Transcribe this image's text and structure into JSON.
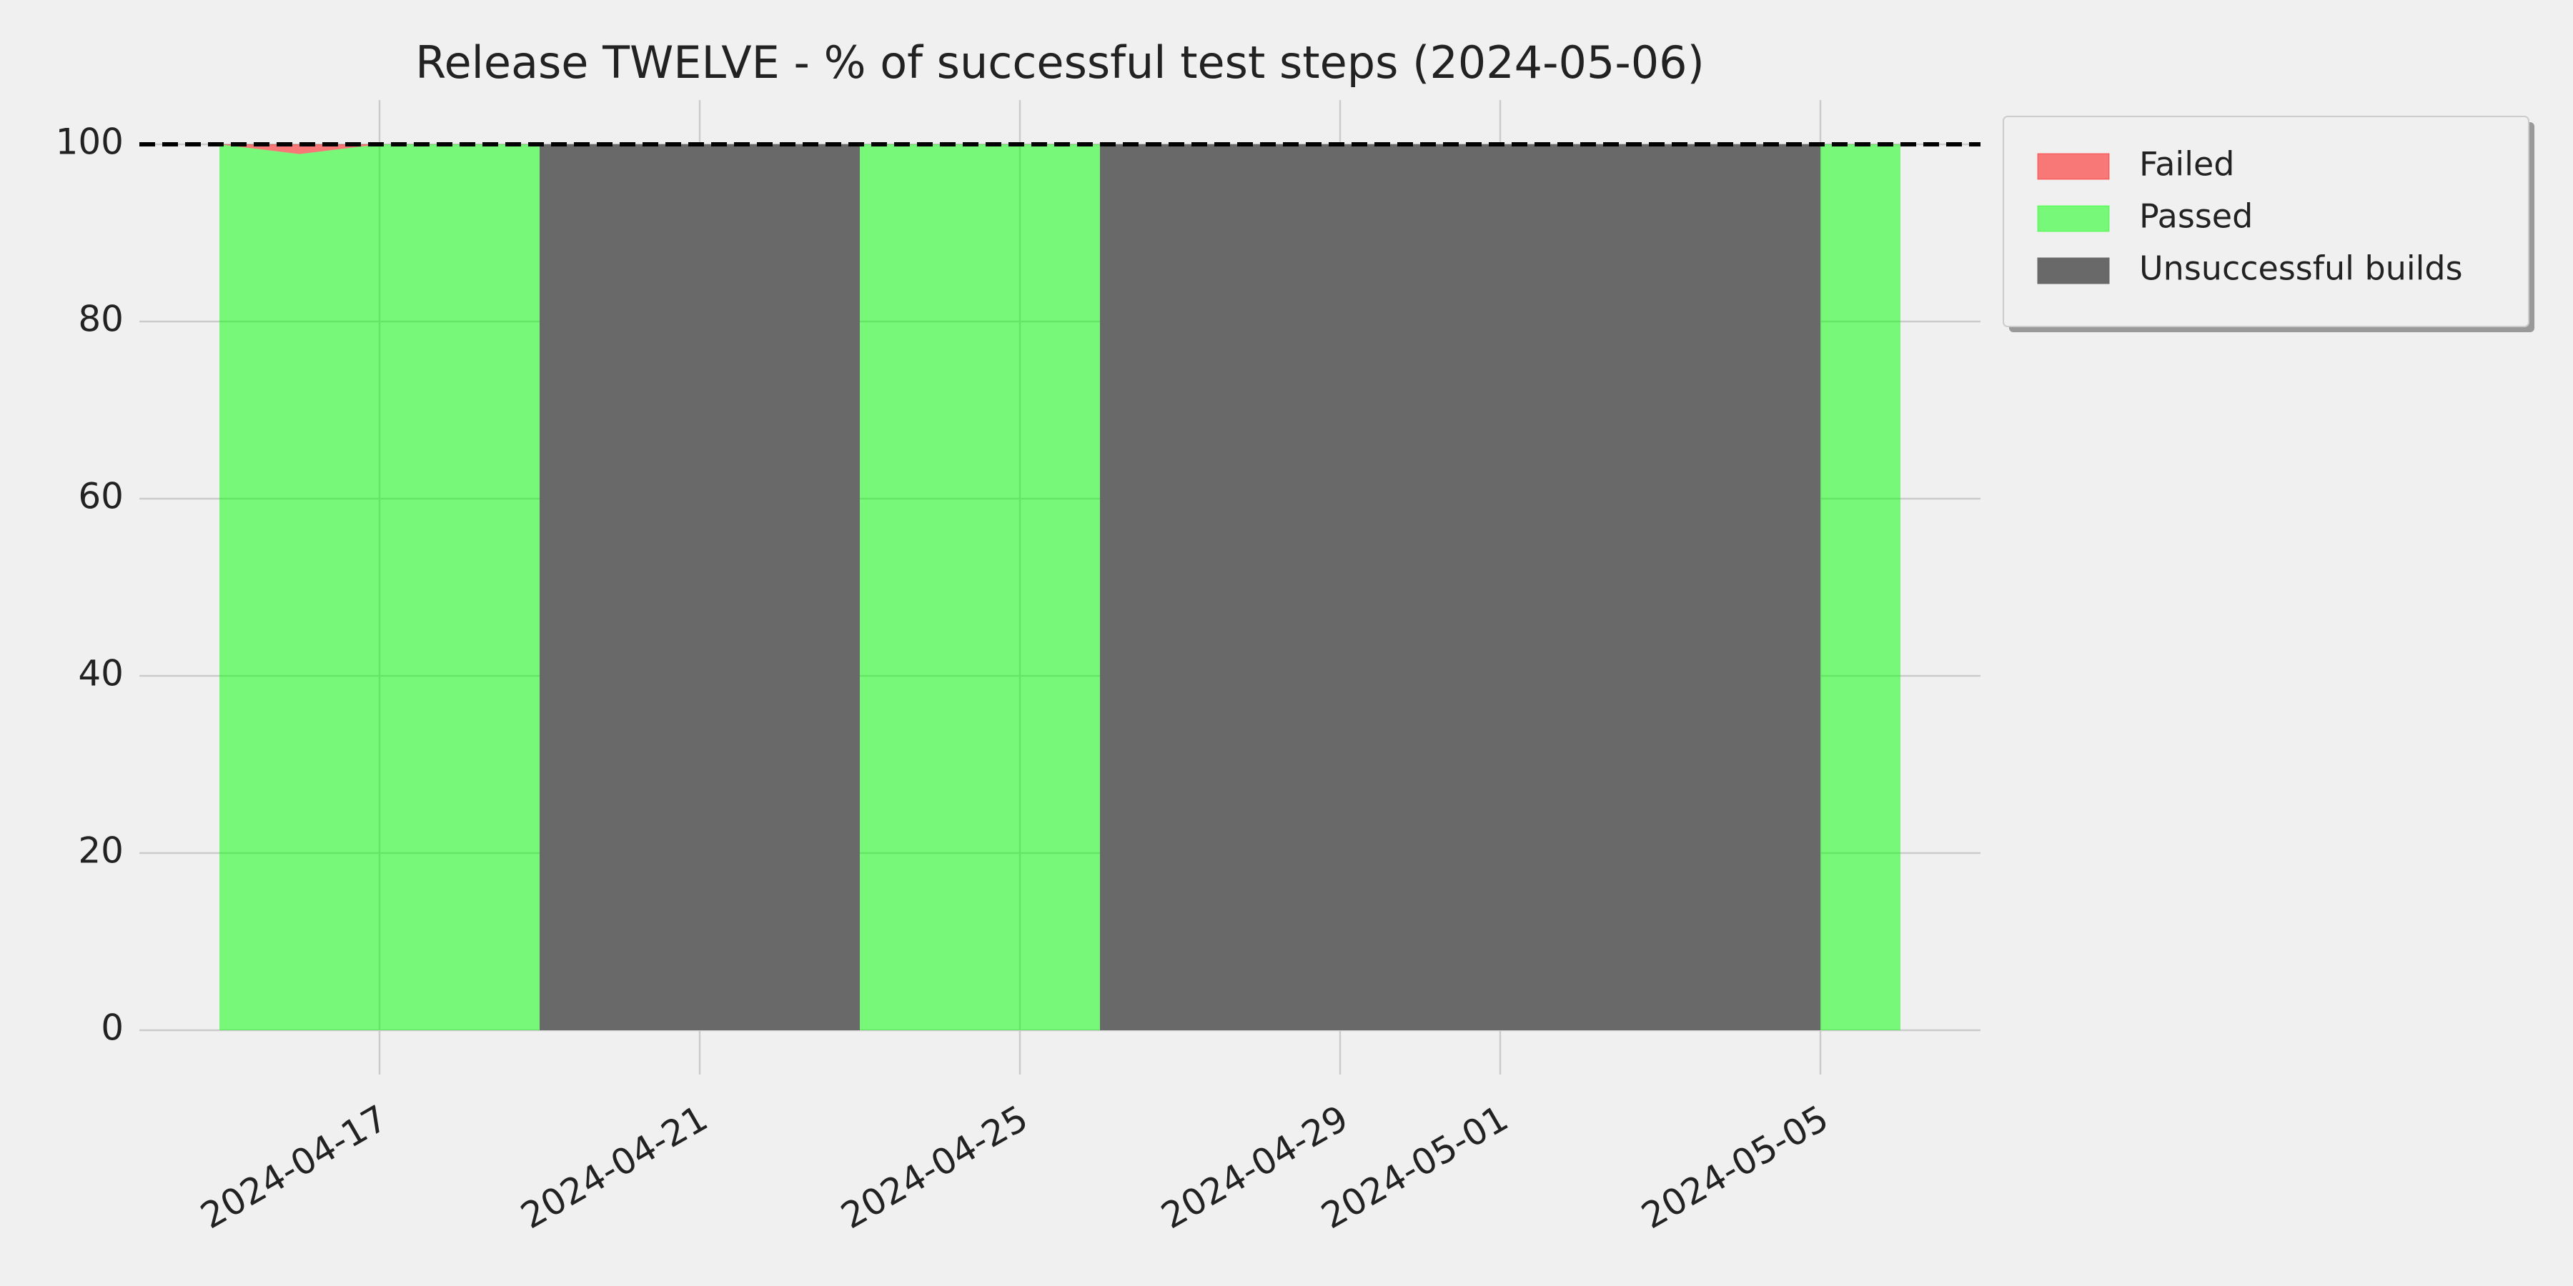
{
  "chart_data": {
    "type": "area",
    "title": "Release TWELVE - % of successful test steps (2024-05-06)",
    "x": [
      "2024-04-15",
      "2024-04-16",
      "2024-04-17",
      "2024-04-18",
      "2024-04-19",
      "2024-04-20",
      "2024-04-21",
      "2024-04-22",
      "2024-04-23",
      "2024-04-24",
      "2024-04-25",
      "2024-04-26",
      "2024-04-27",
      "2024-04-28",
      "2024-04-29",
      "2024-04-30",
      "2024-05-01",
      "2024-05-02",
      "2024-05-03",
      "2024-05-04",
      "2024-05-05",
      "2024-05-06"
    ],
    "series": [
      {
        "name": "Failed",
        "color": "#ff0000",
        "opacity": 0.5,
        "stacked_on": 1,
        "values": [
          0,
          1.1,
          0,
          0,
          0,
          null,
          null,
          null,
          0,
          0,
          0,
          0,
          null,
          null,
          null,
          null,
          null,
          null,
          null,
          null,
          0,
          0
        ]
      },
      {
        "name": "Passed",
        "color": "#00ff00",
        "opacity": 0.5,
        "values": [
          100,
          98.9,
          100,
          100,
          100,
          null,
          null,
          null,
          100,
          100,
          100,
          100,
          null,
          null,
          null,
          null,
          null,
          null,
          null,
          null,
          100,
          100
        ]
      },
      {
        "name": "Unsuccessful builds",
        "color": "#696969",
        "opacity": 1,
        "values": [
          null,
          null,
          null,
          null,
          100,
          100,
          100,
          100,
          100,
          null,
          null,
          100,
          100,
          100,
          100,
          100,
          100,
          100,
          100,
          100,
          100,
          null
        ]
      }
    ],
    "xlim": [
      "2024-04-14",
      "2024-05-07"
    ],
    "xticks": [
      "2024-04-17",
      "2024-04-21",
      "2024-04-25",
      "2024-04-29",
      "2024-05-01",
      "2024-05-05"
    ],
    "ylim": [
      -5,
      105
    ],
    "yticks": [
      0,
      20,
      40,
      60,
      80,
      100
    ],
    "reference_line": 100,
    "grid": true,
    "legend": "outside-upper-right"
  }
}
